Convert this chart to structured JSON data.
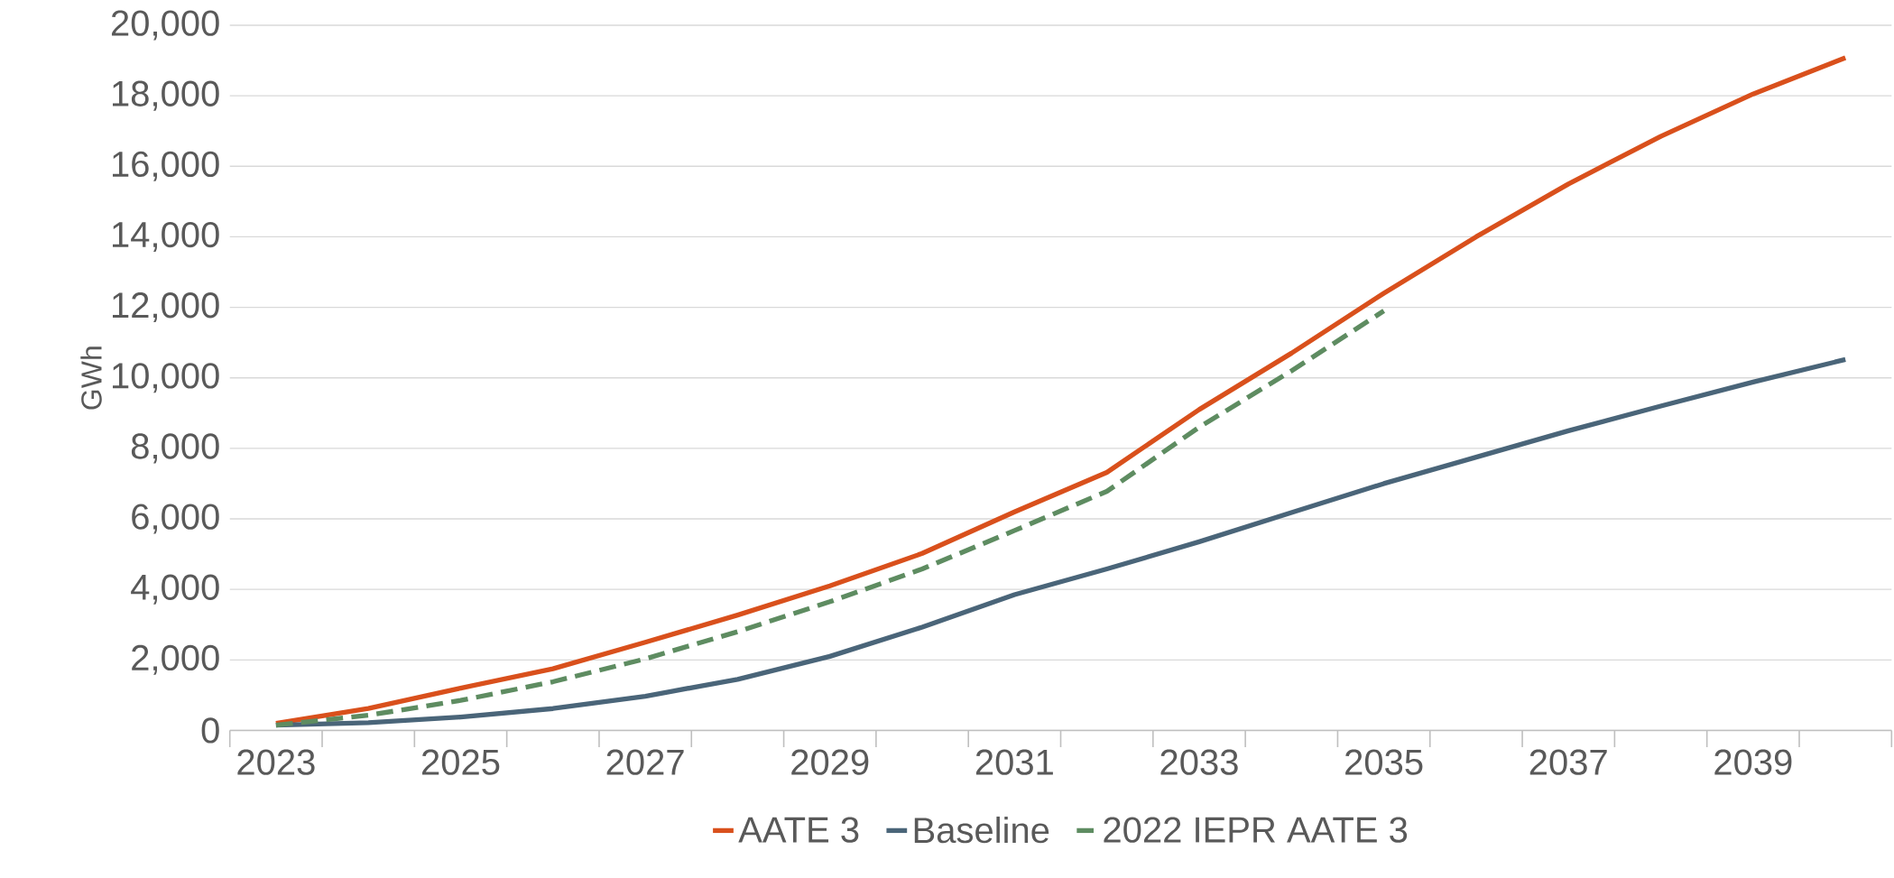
{
  "chart_data": {
    "type": "line",
    "ylabel": "GWh",
    "categories": [
      "2023",
      null,
      "2025",
      null,
      "2027",
      null,
      "2029",
      null,
      "2031",
      null,
      "2033",
      null,
      "2035",
      null,
      "2037",
      null,
      "2039",
      null
    ],
    "series": [
      {
        "name": "AATE 3",
        "color": "#d9501c",
        "line_style": "solid",
        "values": [
          200,
          620,
          1200,
          1750,
          2500,
          3270,
          4100,
          5020,
          6200,
          7320,
          9100,
          10700,
          12400,
          14000,
          15500,
          16850,
          18050,
          19080
        ]
      },
      {
        "name": "Baseline",
        "color": "#4a6579",
        "line_style": "solid",
        "values": [
          150,
          220,
          380,
          620,
          970,
          1450,
          2100,
          2930,
          3850,
          4580,
          5350,
          6180,
          7000,
          7750,
          8500,
          9200,
          9880,
          10520
        ]
      },
      {
        "name": "2022 IEPR AATE 3",
        "color": "#5e8c61",
        "line_style": "dashed",
        "values": [
          150,
          430,
          850,
          1380,
          2030,
          2800,
          3650,
          4580,
          5670,
          6780,
          8600,
          10200,
          11900,
          null,
          null,
          null,
          null,
          null
        ]
      }
    ],
    "ylim": [
      0,
      20000
    ],
    "yticks": [
      0,
      {
        "value": 2000,
        "label": "2,000"
      },
      {
        "value": 4000,
        "label": "4,000"
      },
      {
        "value": 6000,
        "label": "6,000"
      },
      {
        "value": 8000,
        "label": "8,000"
      },
      {
        "value": 10000,
        "label": "10,000"
      },
      {
        "value": 12000,
        "label": "12,000"
      },
      {
        "value": 14000,
        "label": "14,000"
      },
      {
        "value": 16000,
        "label": "16,000"
      },
      {
        "value": 18000,
        "label": "18,000"
      },
      {
        "value": 20000,
        "label": "20,000"
      }
    ],
    "grid": "y",
    "legend": "bottom",
    "marker": "none"
  }
}
